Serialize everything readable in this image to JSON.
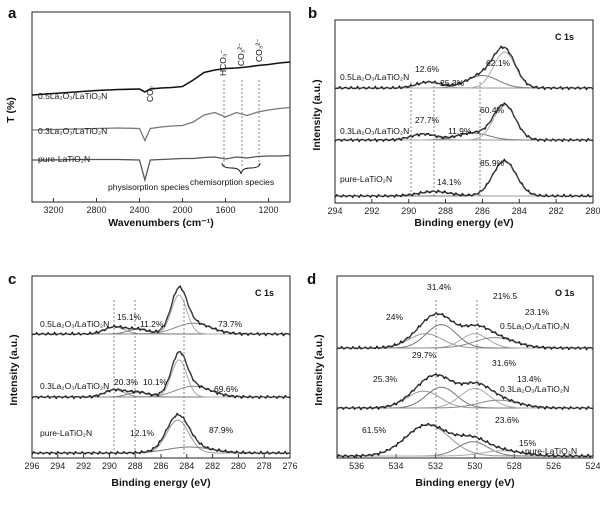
{
  "panels": {
    "a": {
      "label": "a",
      "xlabel": "Wavenumbers (cm⁻¹)",
      "ylabel": "T (%)",
      "series_labels": [
        "0.5La₂O₃/LaTiO₂N",
        "0.3La₂O₃/LaTiO₂N",
        "pure-LaTiO₂N"
      ],
      "annotations": [
        "CO₂",
        "HCO₃⁻",
        "CO₃²⁻",
        "CO₃²⁻",
        "physisorption species",
        "chemisorption species"
      ]
    },
    "b": {
      "label": "b",
      "title": "C 1s",
      "xlabel": "Binding energy (eV)",
      "ylabel": "Intensity (a.u.)",
      "series_labels": [
        "0.5La₂O₃/LaTiO₂N",
        "0.3La₂O₃/LaTiO₂N",
        "pure-LaTiO₂N"
      ],
      "percent_labels": [
        [
          "12.6%",
          "25.3%",
          "62.1%"
        ],
        [
          "27.7%",
          "11.9%",
          "60.4%"
        ],
        [
          "14.1%",
          "85.9%"
        ]
      ]
    },
    "c": {
      "label": "c",
      "title": "C 1s",
      "xlabel": "Binding energy (eV)",
      "ylabel": "Intensity (a.u.)",
      "series_labels": [
        "0.5La₂O₃/LaTiO₂N",
        "0.3La₂O₃/LaTiO₂N",
        "pure-LaTiO₂N"
      ],
      "percent_labels": [
        [
          "15.1%",
          "11.2%",
          "73.7%"
        ],
        [
          "20.3%",
          "10.1%",
          "69.6%"
        ],
        [
          "12.1%",
          "87.9%"
        ]
      ]
    },
    "d": {
      "label": "d",
      "title": "O 1s",
      "xlabel": "Binding energy (eV)",
      "ylabel": "Intensity (a.u.)",
      "series_labels": [
        "0.5La₂O₃/LaTiO₂N",
        "0.3La₂O₃/LaTiO₂N",
        "pure-LaTiO₂N"
      ],
      "percent_labels": [
        [
          "24%",
          "31.4%",
          "21%.5",
          "23.1%"
        ],
        [
          "25.3%",
          "29.7%",
          "31.6%",
          "13.4%"
        ],
        [
          "61.5%",
          "23.6%",
          "15%"
        ]
      ]
    }
  },
  "chart_data": [
    {
      "type": "line",
      "panel": "a",
      "xlabel": "Wavenumbers (cm⁻¹)",
      "ylabel": "T (%)",
      "xlim": [
        3400,
        1000
      ],
      "x_ticks": [
        3200,
        2800,
        2400,
        2000,
        1600,
        1200
      ],
      "grid": false,
      "series": [
        {
          "name": "0.5La₂O₃/LaTiO₂N",
          "color": "#111111",
          "x": [
            3400,
            3200,
            3000,
            2800,
            2600,
            2400,
            2350,
            2300,
            2200,
            2100,
            2000,
            1900,
            1800,
            1700,
            1600,
            1500,
            1400,
            1300,
            1200,
            1100,
            1000
          ],
          "y": [
            0.0,
            0.3,
            0.6,
            0.9,
            1.1,
            1.2,
            0.6,
            1.2,
            1.4,
            1.5,
            1.7,
            3.0,
            4.5,
            5.0,
            5.3,
            5.4,
            5.6,
            5.9,
            6.1,
            6.4,
            6.6
          ]
        },
        {
          "name": "0.3La₂O₃/LaTiO₂N",
          "color": "#777777",
          "x": [
            3400,
            3200,
            3000,
            2800,
            2600,
            2400,
            2350,
            2300,
            2200,
            2100,
            2000,
            1900,
            1800,
            1700,
            1600,
            1500,
            1400,
            1300,
            1200,
            1100,
            1000
          ],
          "y": [
            0.0,
            0.1,
            0.2,
            0.3,
            0.4,
            0.3,
            -2.1,
            0.3,
            0.6,
            0.8,
            0.9,
            1.6,
            3.0,
            3.5,
            2.6,
            3.5,
            2.9,
            3.6,
            4.0,
            4.3,
            4.5
          ]
        },
        {
          "name": "pure-LaTiO₂N",
          "color": "#555555",
          "x": [
            3400,
            3200,
            3000,
            2800,
            2600,
            2400,
            2350,
            2300,
            2200,
            2100,
            2000,
            1900,
            1800,
            1700,
            1600,
            1500,
            1400,
            1300,
            1200,
            1100,
            1000
          ],
          "y": [
            0.0,
            0.0,
            0.1,
            0.1,
            0.1,
            0.0,
            -4.0,
            0.0,
            0.1,
            0.2,
            0.3,
            0.3,
            0.5,
            0.6,
            0.2,
            0.6,
            0.4,
            0.7,
            0.8,
            0.8,
            0.9
          ]
        }
      ]
    },
    {
      "type": "line",
      "panel": "b",
      "title": "C 1s",
      "xlabel": "Binding energy (eV)",
      "ylabel": "Intensity (a.u.)",
      "xlim": [
        294,
        280
      ],
      "x_ticks": [
        294,
        292,
        290,
        288,
        286,
        284,
        282,
        280
      ],
      "series": [
        {
          "name": "0.5La₂O₃/LaTiO₂N",
          "components": [
            {
              "center": 288.9,
              "height": 0.12,
              "fwhm": 1.6
            },
            {
              "center": 286.0,
              "height": 0.25,
              "fwhm": 2.0
            },
            {
              "center": 284.8,
              "height": 0.72,
              "fwhm": 1.4
            }
          ]
        },
        {
          "name": "0.3La₂O₃/LaTiO₂N",
          "components": [
            {
              "center": 289.2,
              "height": 0.12,
              "fwhm": 1.6
            },
            {
              "center": 286.5,
              "height": 0.14,
              "fwhm": 2.0
            },
            {
              "center": 284.8,
              "height": 0.7,
              "fwhm": 1.4
            }
          ]
        },
        {
          "name": "pure-LaTiO₂N",
          "components": [
            {
              "center": 288.6,
              "height": 0.09,
              "fwhm": 2.0
            },
            {
              "center": 284.8,
              "height": 0.7,
              "fwhm": 1.5
            }
          ]
        }
      ]
    },
    {
      "type": "line",
      "panel": "c",
      "title": "C 1s",
      "xlabel": "Binding energy (eV)",
      "ylabel": "Intensity (a.u.)",
      "xlim": [
        296,
        276
      ],
      "x_ticks": [
        296,
        294,
        292,
        290,
        288,
        286,
        284,
        282,
        280,
        278,
        276
      ],
      "series": [
        {
          "name": "0.5La₂O₃/LaTiO₂N",
          "components": [
            {
              "center": 289.6,
              "height": 0.12,
              "fwhm": 1.8
            },
            {
              "center": 287.8,
              "height": 0.08,
              "fwhm": 1.8
            },
            {
              "center": 284.6,
              "height": 0.65,
              "fwhm": 1.4
            },
            {
              "center": 283.5,
              "height": 0.18,
              "fwhm": 3.2
            }
          ]
        },
        {
          "name": "0.3La₂O₃/LaTiO₂N",
          "components": [
            {
              "center": 289.6,
              "height": 0.12,
              "fwhm": 1.8
            },
            {
              "center": 287.8,
              "height": 0.08,
              "fwhm": 1.8
            },
            {
              "center": 284.6,
              "height": 0.62,
              "fwhm": 1.4
            },
            {
              "center": 283.5,
              "height": 0.18,
              "fwhm": 3.2
            }
          ]
        },
        {
          "name": "pure-LaTiO₂N",
          "components": [
            {
              "center": 284.7,
              "height": 0.55,
              "fwhm": 2.0
            },
            {
              "center": 283.8,
              "height": 0.1,
              "fwhm": 4.0
            }
          ]
        }
      ]
    },
    {
      "type": "line",
      "panel": "d",
      "title": "O 1s",
      "xlabel": "Binding energy (eV)",
      "ylabel": "Intensity (a.u.)",
      "xlim": [
        537,
        524
      ],
      "x_ticks": [
        536,
        534,
        532,
        530,
        528,
        526,
        524
      ],
      "series": [
        {
          "name": "0.5La₂O₃/LaTiO₂N",
          "components": [
            {
              "center": 532.5,
              "height": 0.22,
              "fwhm": 2.0
            },
            {
              "center": 531.7,
              "height": 0.36,
              "fwhm": 1.8
            },
            {
              "center": 530.0,
              "height": 0.22,
              "fwhm": 1.6
            },
            {
              "center": 529.0,
              "height": 0.16,
              "fwhm": 2.4
            }
          ]
        },
        {
          "name": "0.3La₂O₃/LaTiO₂N",
          "components": [
            {
              "center": 532.6,
              "height": 0.26,
              "fwhm": 2.0
            },
            {
              "center": 531.7,
              "height": 0.32,
              "fwhm": 1.8
            },
            {
              "center": 530.0,
              "height": 0.3,
              "fwhm": 1.8
            },
            {
              "center": 528.8,
              "height": 0.12,
              "fwhm": 2.4
            }
          ]
        },
        {
          "name": "pure-LaTiO₂N",
          "components": [
            {
              "center": 532.4,
              "height": 0.48,
              "fwhm": 2.6
            },
            {
              "center": 530.1,
              "height": 0.22,
              "fwhm": 1.8
            },
            {
              "center": 528.6,
              "height": 0.08,
              "fwhm": 2.4
            }
          ]
        }
      ]
    }
  ]
}
